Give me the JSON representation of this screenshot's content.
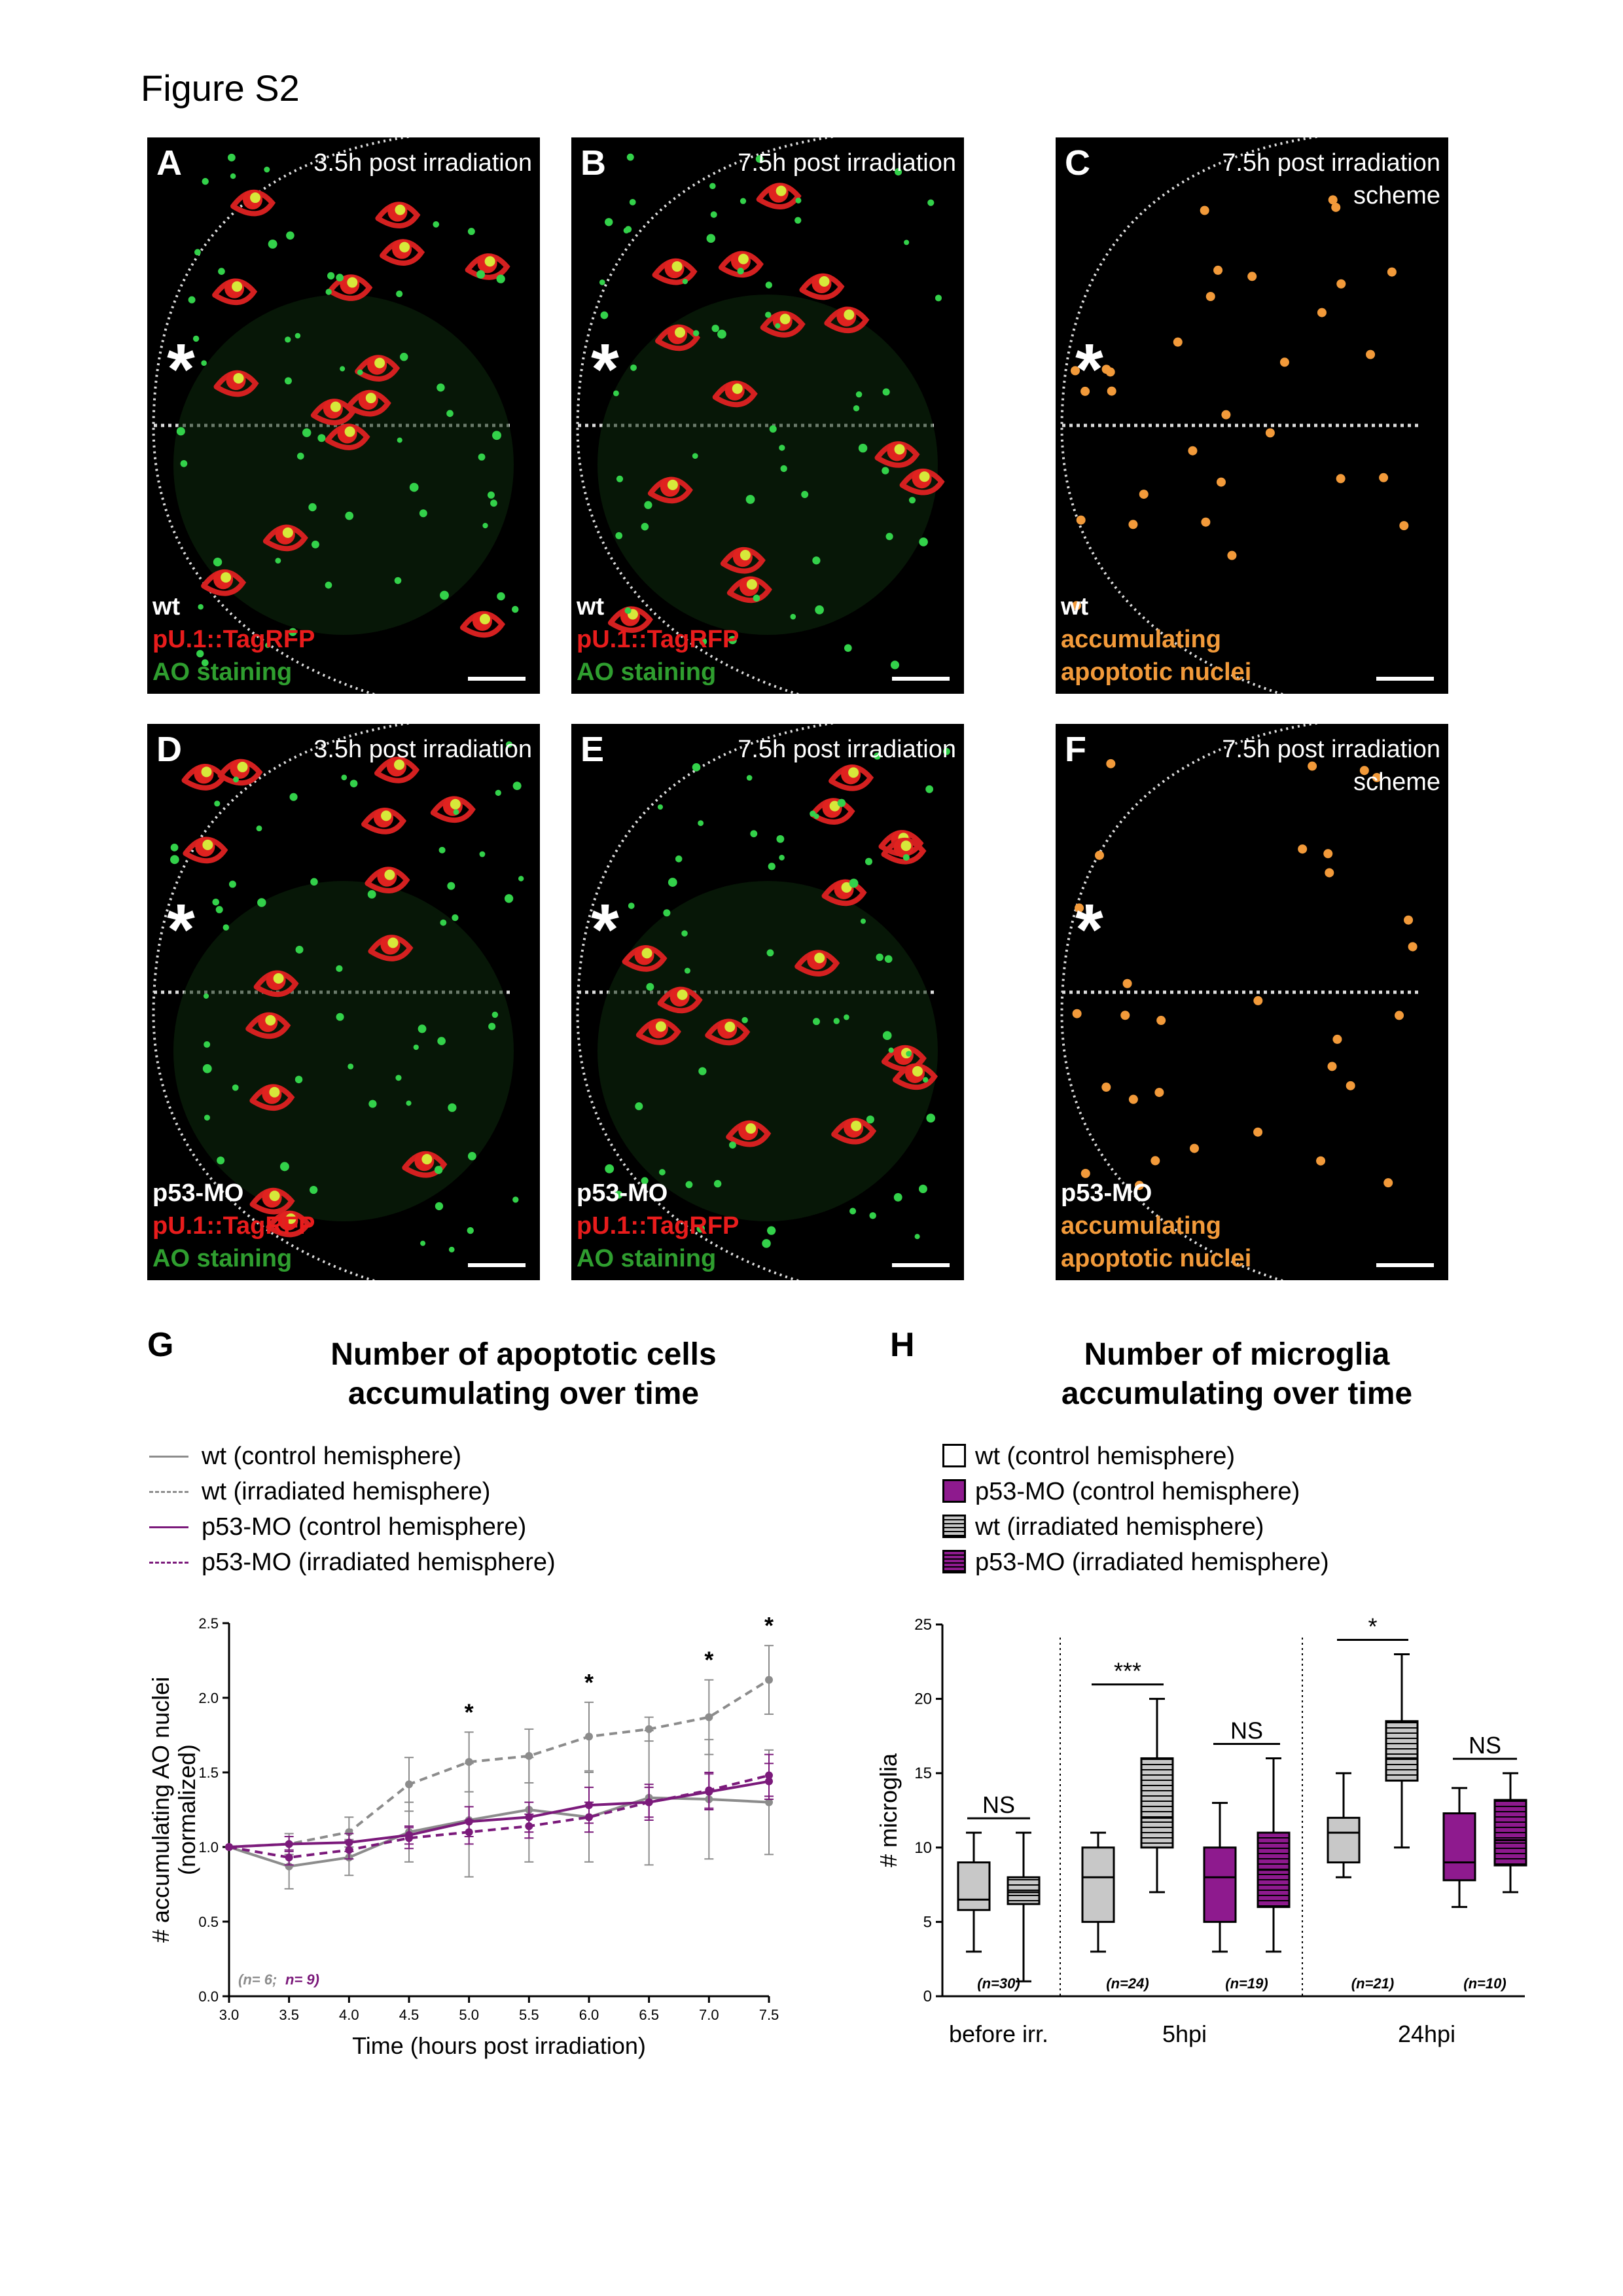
{
  "figure_title": "Figure S2",
  "panels": [
    {
      "id": "A",
      "label": "A",
      "time": [
        "3.5h post irradiation"
      ],
      "legend": [
        "wt",
        "pU.1::TagRFP",
        "AO staining"
      ],
      "kind": "micro"
    },
    {
      "id": "B",
      "label": "B",
      "time": [
        "7.5h post irradiation"
      ],
      "legend": [
        "wt",
        "pU.1::TagRFP",
        "AO staining"
      ],
      "kind": "micro"
    },
    {
      "id": "C",
      "label": "C",
      "time": [
        "7.5h post irradiation",
        "scheme"
      ],
      "legend": [
        "wt",
        "accumulating",
        "apoptotic nuclei"
      ],
      "kind": "scheme"
    },
    {
      "id": "D",
      "label": "D",
      "time": [
        "3.5h post irradiation"
      ],
      "legend": [
        "p53-MO",
        "pU.1::TagRFP",
        "AO staining"
      ],
      "kind": "micro"
    },
    {
      "id": "E",
      "label": "E",
      "time": [
        "7.5h post irradiation"
      ],
      "legend": [
        "p53-MO",
        "pU.1::TagRFP",
        "AO staining"
      ],
      "kind": "micro"
    },
    {
      "id": "F",
      "label": "F",
      "time": [
        "7.5h post irradiation",
        "scheme"
      ],
      "legend": [
        "p53-MO",
        "accumulating",
        "apoptotic nuclei"
      ],
      "kind": "scheme"
    }
  ],
  "asterisk": "*",
  "colors": {
    "red": "#e81c1c",
    "green": "#2f9e2f",
    "orange": "#f29a3a",
    "gray": "#8c8c8c",
    "purple": "#7b1a7b",
    "purple_box": "#8e1a8e",
    "gray_box": "#c8c8c8"
  },
  "panel_G": {
    "label": "G",
    "title": [
      "Number of apoptotic cells",
      "accumulating over time"
    ],
    "legend": [
      {
        "text": "wt (control hemisphere)",
        "color": "#8c8c8c",
        "dash": false
      },
      {
        "text": "wt (irradiated hemisphere)",
        "color": "#8c8c8c",
        "dash": true
      },
      {
        "text": "p53-MO (control hemisphere)",
        "color": "#7b1a7b",
        "dash": false
      },
      {
        "text": "p53-MO (irradiated hemisphere)",
        "color": "#7b1a7b",
        "dash": true
      }
    ],
    "n_wt": "(n= 6;",
    "n_p53": "n= 9)"
  },
  "panel_H": {
    "label": "H",
    "title": [
      "Number of microglia",
      "accumulating over time"
    ],
    "legend": [
      {
        "text": "wt (control hemisphere)",
        "fill": "#ffffff",
        "hatch": false
      },
      {
        "text": "p53-MO (control hemisphere)",
        "fill": "#8e1a8e",
        "hatch": false
      },
      {
        "text": "wt (irradiated hemisphere)",
        "fill": "#c8c8c8",
        "hatch": true
      },
      {
        "text": "p53-MO (irradiated hemisphere)",
        "fill": "#8e1a8e",
        "hatch": true
      }
    ]
  },
  "chart_data": [
    {
      "type": "line",
      "title": "Number of apoptotic cells accumulating over time",
      "xlabel": "Time (hours post irradiation)",
      "ylabel": "# accumulating AO nuclei (normalized)",
      "x": [
        3.0,
        3.5,
        4.0,
        4.5,
        5.0,
        5.5,
        6.0,
        6.5,
        7.0,
        7.5
      ],
      "xticks": [
        "3.0",
        "3.5",
        "4.0",
        "4.5",
        "5.0",
        "5.5",
        "6.0",
        "6.5",
        "7.0",
        "7.5"
      ],
      "yticks": [
        "0.0",
        "0.5",
        "1.0",
        "1.5",
        "2.0",
        "2.5"
      ],
      "xlim": [
        3.0,
        7.5
      ],
      "ylim": [
        0,
        2.5
      ],
      "significance": [
        {
          "x": 5.0,
          "label": "*"
        },
        {
          "x": 6.0,
          "label": "*"
        },
        {
          "x": 7.0,
          "label": "*"
        },
        {
          "x": 7.5,
          "label": "*"
        }
      ],
      "series": [
        {
          "name": "wt (control hemisphere)",
          "color": "#8c8c8c",
          "dash": false,
          "values": [
            1.0,
            0.87,
            0.93,
            1.1,
            1.18,
            1.25,
            1.2,
            1.33,
            1.32,
            1.3
          ],
          "err": [
            0,
            0.15,
            0.12,
            0.2,
            0.38,
            0.35,
            0.3,
            0.45,
            0.4,
            0.35
          ]
        },
        {
          "name": "wt (irradiated hemisphere)",
          "color": "#8c8c8c",
          "dash": true,
          "values": [
            1.0,
            1.02,
            1.1,
            1.42,
            1.57,
            1.61,
            1.74,
            1.79,
            1.87,
            2.12
          ],
          "err": [
            0,
            0.07,
            0.1,
            0.18,
            0.2,
            0.18,
            0.23,
            0.08,
            0.25,
            0.23
          ]
        },
        {
          "name": "p53-MO (control hemisphere)",
          "color": "#7b1a7b",
          "dash": false,
          "values": [
            1.0,
            1.02,
            1.03,
            1.08,
            1.17,
            1.2,
            1.28,
            1.3,
            1.37,
            1.44
          ],
          "err": [
            0,
            0.05,
            0.06,
            0.06,
            0.1,
            0.1,
            0.12,
            0.12,
            0.12,
            0.12
          ]
        },
        {
          "name": "p53-MO (irradiated hemisphere)",
          "color": "#7b1a7b",
          "dash": true,
          "values": [
            1.0,
            0.93,
            0.98,
            1.06,
            1.1,
            1.14,
            1.2,
            1.3,
            1.38,
            1.48
          ],
          "err": [
            0,
            0.05,
            0.06,
            0.07,
            0.08,
            0.08,
            0.1,
            0.1,
            0.12,
            0.14
          ]
        }
      ]
    },
    {
      "type": "box",
      "title": "Number of microglia accumulating over time",
      "ylabel": "# microglia",
      "yticks": [
        "0",
        "5",
        "10",
        "15",
        "20",
        "25"
      ],
      "ylim": [
        0,
        25
      ],
      "groups": [
        "before irr.",
        "5hpi",
        "24hpi"
      ],
      "boxes": [
        {
          "group": "before irr.",
          "series": "wt (control hemisphere)",
          "fill": "#c8c8c8",
          "hatch": false,
          "min": 3,
          "q1": 5.8,
          "median": 6.5,
          "q3": 9,
          "max": 11
        },
        {
          "group": "before irr.",
          "series": "wt (irradiated hemisphere)",
          "fill": "#c8c8c8",
          "hatch": true,
          "min": 1,
          "q1": 6.2,
          "median": 7,
          "q3": 8,
          "max": 11
        },
        {
          "group": "5hpi",
          "series": "wt (control hemisphere)",
          "fill": "#c8c8c8",
          "hatch": false,
          "min": 3,
          "q1": 5,
          "median": 8,
          "q3": 10,
          "max": 11
        },
        {
          "group": "5hpi",
          "series": "wt (irradiated hemisphere)",
          "fill": "#c8c8c8",
          "hatch": true,
          "min": 7,
          "q1": 10,
          "median": 12,
          "q3": 16,
          "max": 20
        },
        {
          "group": "5hpi",
          "series": "p53-MO (control hemisphere)",
          "fill": "#8e1a8e",
          "hatch": false,
          "min": 3,
          "q1": 5,
          "median": 8,
          "q3": 10,
          "max": 13
        },
        {
          "group": "5hpi",
          "series": "p53-MO (irradiated hemisphere)",
          "fill": "#8e1a8e",
          "hatch": true,
          "min": 3,
          "q1": 6,
          "median": 8.5,
          "q3": 11,
          "max": 16
        },
        {
          "group": "24hpi",
          "series": "wt (control hemisphere)",
          "fill": "#c8c8c8",
          "hatch": false,
          "min": 8,
          "q1": 9,
          "median": 11,
          "q3": 12,
          "max": 15
        },
        {
          "group": "24hpi",
          "series": "wt (irradiated hemisphere)",
          "fill": "#c8c8c8",
          "hatch": true,
          "min": 10,
          "q1": 14.5,
          "median": 16,
          "q3": 18.5,
          "max": 23
        },
        {
          "group": "24hpi",
          "series": "p53-MO (control hemisphere)",
          "fill": "#8e1a8e",
          "hatch": false,
          "min": 6,
          "q1": 7.8,
          "median": 9,
          "q3": 12.3,
          "max": 14
        },
        {
          "group": "24hpi",
          "series": "p53-MO (irradiated hemisphere)",
          "fill": "#8e1a8e",
          "hatch": true,
          "min": 7,
          "q1": 8.8,
          "median": 10.5,
          "q3": 13.2,
          "max": 15
        }
      ],
      "n_labels": [
        "(n=30)",
        "(n=24)",
        "(n=19)",
        "(n=21)",
        "(n=10)"
      ],
      "significance": [
        "NS",
        "***",
        "NS",
        "*",
        "NS"
      ]
    }
  ]
}
